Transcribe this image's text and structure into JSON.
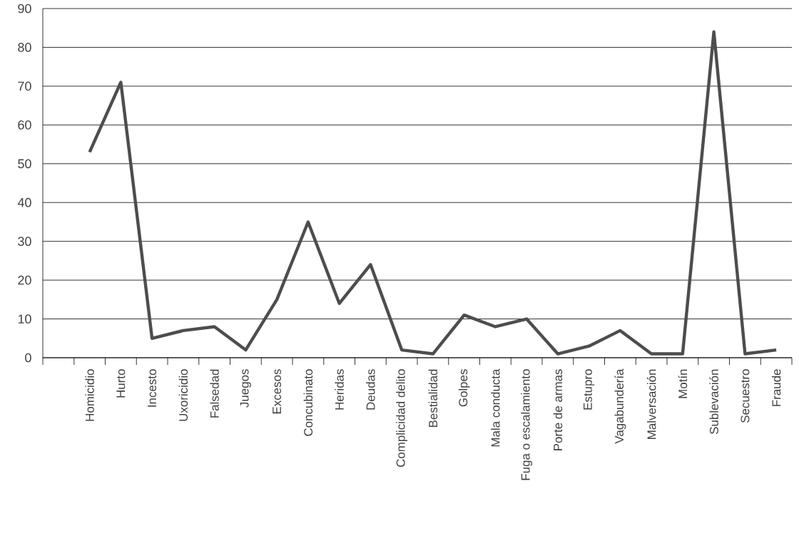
{
  "chart_data": {
    "type": "line",
    "categories": [
      "Homicidio",
      "Hurto",
      "Incesto",
      "Uxoricidio",
      "Falsedad",
      "Juegos",
      "Excesos",
      "Concubinato",
      "Heridas",
      "Deudas",
      "Complicidad delito",
      "Bestialidad",
      "Golpes",
      "Mala conducta",
      "Fuga o escalamiento",
      "Porte de armas",
      "Estupro",
      "Vagabundería",
      "Malversación",
      "Motín",
      "Sublevación",
      "Secuestro",
      "Fraude"
    ],
    "series": [
      {
        "color": "#4d4d4d",
        "values": [
          53,
          71,
          5,
          7,
          8,
          2,
          15,
          35,
          14,
          24,
          2,
          1,
          11,
          8,
          10,
          1,
          3,
          7,
          1,
          1,
          84,
          1,
          2
        ]
      }
    ],
    "ylim": [
      0,
      90
    ],
    "yticks": [
      0,
      10,
      20,
      30,
      40,
      50,
      60,
      70,
      80,
      90
    ],
    "grid": "y",
    "marker": "none",
    "line_style": "solid"
  }
}
